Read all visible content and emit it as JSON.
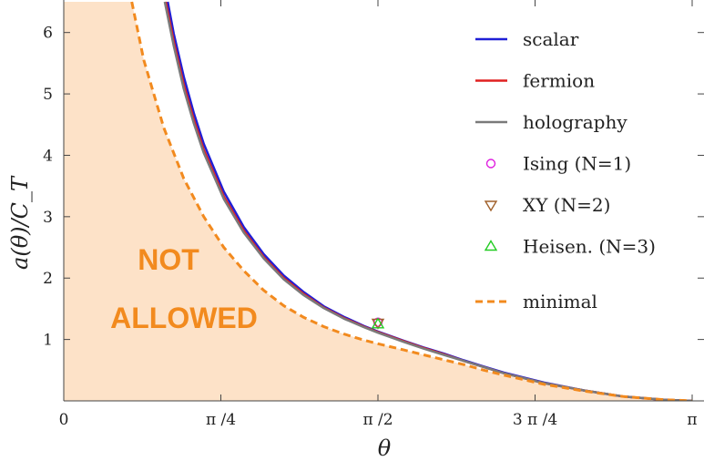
{
  "chart_data": {
    "type": "line",
    "xlabel": "θ",
    "ylabel": "a(θ)/C_T",
    "xlim": [
      0,
      3.14159
    ],
    "ylim": [
      0,
      6.5
    ],
    "x_ticks": [
      {
        "value": 0,
        "label": "0"
      },
      {
        "value": 0.7854,
        "label": "π /4"
      },
      {
        "value": 1.5708,
        "label": "π /2"
      },
      {
        "value": 2.3562,
        "label": "3 π /4"
      },
      {
        "value": 3.1416,
        "label": "π"
      }
    ],
    "y_ticks": [
      {
        "value": 1,
        "label": "1"
      },
      {
        "value": 2,
        "label": "2"
      },
      {
        "value": 3,
        "label": "3"
      },
      {
        "value": 4,
        "label": "4"
      },
      {
        "value": 5,
        "label": "5"
      },
      {
        "value": 6,
        "label": "6"
      }
    ],
    "region_label": [
      "NOT",
      "ALLOWED"
    ],
    "region_color": "#fde2c8",
    "series": [
      {
        "name": "scalar",
        "color": "#1f1fd6",
        "style": "solid",
        "x": [
          0.52,
          0.55,
          0.6,
          0.65,
          0.7,
          0.8,
          0.9,
          1.0,
          1.1,
          1.2,
          1.3,
          1.4,
          1.5,
          1.5708,
          1.7,
          1.8,
          1.9,
          2.0,
          2.1,
          2.2,
          2.4,
          2.6,
          2.8,
          3.0,
          3.1416
        ],
        "y": [
          6.5,
          5.98,
          5.28,
          4.69,
          4.19,
          3.41,
          2.83,
          2.39,
          2.04,
          1.77,
          1.54,
          1.37,
          1.22,
          1.13,
          0.98,
          0.87,
          0.77,
          0.66,
          0.56,
          0.46,
          0.3,
          0.17,
          0.07,
          0.02,
          0.0
        ]
      },
      {
        "name": "fermion",
        "color": "#e02020",
        "style": "solid",
        "x": [
          0.51,
          0.55,
          0.6,
          0.65,
          0.7,
          0.8,
          0.9,
          1.0,
          1.1,
          1.2,
          1.3,
          1.4,
          1.5,
          1.5708,
          1.7,
          1.8,
          1.9,
          2.0,
          2.1,
          2.2,
          2.4,
          2.6,
          2.8,
          3.0,
          3.1416
        ],
        "y": [
          6.5,
          5.85,
          5.15,
          4.58,
          4.09,
          3.33,
          2.77,
          2.34,
          2.0,
          1.74,
          1.52,
          1.35,
          1.21,
          1.12,
          0.97,
          0.86,
          0.76,
          0.65,
          0.55,
          0.45,
          0.29,
          0.17,
          0.07,
          0.02,
          0.0
        ]
      },
      {
        "name": "holography",
        "color": "#7a7a7a",
        "style": "solid",
        "x": [
          0.505,
          0.55,
          0.6,
          0.65,
          0.7,
          0.8,
          0.9,
          1.0,
          1.1,
          1.2,
          1.3,
          1.4,
          1.5,
          1.5708,
          1.7,
          1.8,
          1.9,
          2.0,
          2.1,
          2.2,
          2.4,
          2.6,
          2.8,
          3.0,
          3.1416
        ],
        "y": [
          6.5,
          5.78,
          5.08,
          4.52,
          4.04,
          3.29,
          2.74,
          2.32,
          1.98,
          1.72,
          1.51,
          1.34,
          1.2,
          1.11,
          0.96,
          0.85,
          0.75,
          0.65,
          0.55,
          0.45,
          0.29,
          0.17,
          0.07,
          0.02,
          0.0
        ]
      },
      {
        "name": "minimal",
        "color": "#f28a1e",
        "style": "dashed",
        "x": [
          0.34,
          0.4,
          0.5,
          0.6,
          0.7,
          0.8,
          0.9,
          1.0,
          1.1,
          1.2,
          1.3,
          1.4,
          1.5,
          1.5708,
          1.7,
          1.8,
          1.9,
          2.0,
          2.1,
          2.2,
          2.4,
          2.6,
          2.8,
          3.0,
          3.1416
        ],
        "y": [
          6.5,
          5.55,
          4.45,
          3.62,
          3.0,
          2.5,
          2.12,
          1.8,
          1.55,
          1.36,
          1.21,
          1.09,
          0.99,
          0.93,
          0.83,
          0.75,
          0.67,
          0.59,
          0.5,
          0.42,
          0.27,
          0.16,
          0.07,
          0.02,
          0.0
        ]
      }
    ],
    "points": [
      {
        "name": "Ising (N=1)",
        "marker": "circle",
        "color": "#e020e0",
        "x": 1.5708,
        "y": 1.28
      },
      {
        "name": "XY (N=2)",
        "marker": "triangle-down",
        "color": "#a0602a",
        "x": 1.5708,
        "y": 1.27
      },
      {
        "name": "Heisen. (N=3)",
        "marker": "triangle-up",
        "color": "#22cc22",
        "x": 1.5708,
        "y": 1.25
      }
    ],
    "legend_position": "top-right",
    "grid": false
  }
}
